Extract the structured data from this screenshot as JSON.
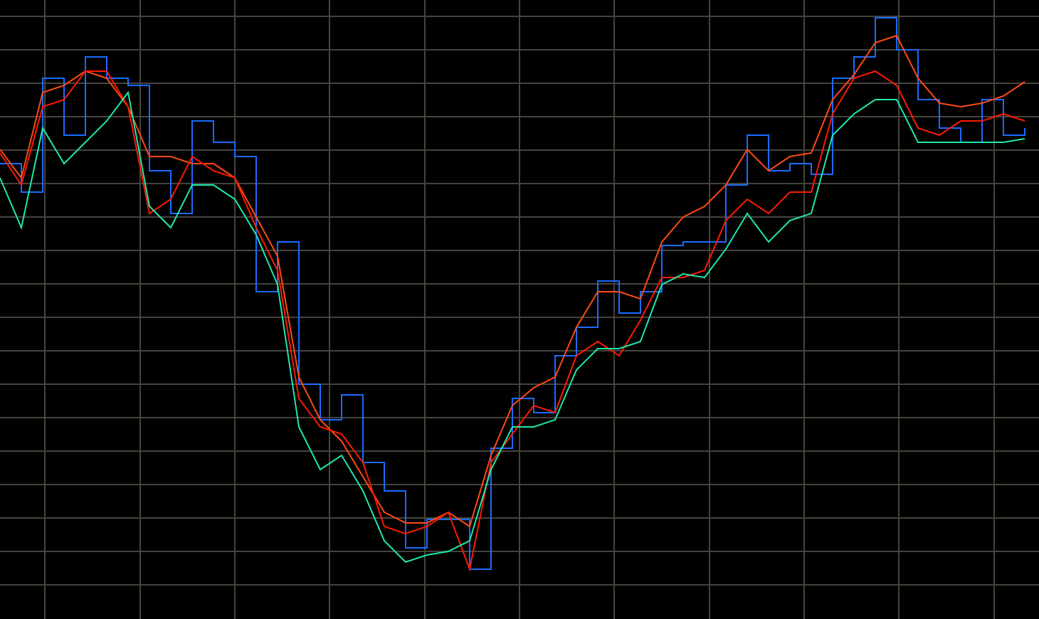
{
  "chart_data": {
    "type": "line",
    "xlim": [
      0,
      1460
    ],
    "ylim": [
      0,
      870
    ],
    "xticks": [
      63,
      197,
      330,
      463,
      597,
      730,
      863,
      997,
      1130,
      1263,
      1397
    ],
    "yticks": [
      48,
      95,
      142,
      189,
      236,
      283,
      330,
      377,
      424,
      471,
      518,
      565,
      612,
      659,
      706,
      753,
      800,
      847
    ],
    "grid": true,
    "grid_color": "#45443c",
    "background": "#000000",
    "x": [
      0,
      30,
      60,
      90,
      120,
      150,
      180,
      210,
      240,
      270,
      300,
      330,
      360,
      390,
      420,
      450,
      480,
      510,
      540,
      570,
      600,
      630,
      660,
      690,
      720,
      750,
      780,
      810,
      840,
      870,
      900,
      930,
      960,
      990,
      1020,
      1050,
      1080,
      1110,
      1140,
      1170,
      1200,
      1230,
      1260,
      1290,
      1320,
      1350,
      1380,
      1410,
      1440
    ],
    "series": [
      {
        "color": "#1a6cff",
        "step": true,
        "values": [
          640,
          600,
          760,
          680,
          790,
          760,
          750,
          630,
          570,
          700,
          670,
          650,
          460,
          530,
          330,
          280,
          315,
          220,
          180,
          100,
          140,
          140,
          70,
          240,
          310,
          290,
          370,
          410,
          475,
          430,
          460,
          525,
          530,
          530,
          610,
          680,
          630,
          640,
          625,
          760,
          790,
          845,
          800,
          730,
          690,
          670,
          730,
          680,
          690
        ]
      },
      {
        "color": "#ff4a14",
        "step": false,
        "values": [
          660,
          620,
          740,
          750,
          770,
          760,
          720,
          650,
          650,
          640,
          640,
          620,
          565,
          510,
          340,
          280,
          250,
          200,
          150,
          135,
          135,
          150,
          130,
          230,
          300,
          325,
          340,
          410,
          460,
          460,
          450,
          530,
          565,
          580,
          610,
          660,
          630,
          650,
          655,
          730,
          765,
          810,
          820,
          760,
          725,
          720,
          725,
          735,
          755
        ]
      },
      {
        "color": "#ff1a00",
        "step": false,
        "values": [
          655,
          610,
          720,
          730,
          770,
          770,
          720,
          570,
          590,
          650,
          630,
          620,
          550,
          490,
          310,
          270,
          260,
          220,
          130,
          120,
          130,
          150,
          70,
          220,
          260,
          300,
          290,
          370,
          390,
          370,
          420,
          480,
          480,
          490,
          560,
          590,
          570,
          600,
          600,
          710,
          760,
          770,
          750,
          690,
          680,
          700,
          700,
          710,
          700
        ]
      },
      {
        "color": "#1fe8a8",
        "step": false,
        "values": [
          620,
          550,
          690,
          640,
          670,
          700,
          740,
          580,
          550,
          610,
          610,
          590,
          540,
          470,
          270,
          210,
          230,
          180,
          110,
          80,
          90,
          95,
          110,
          210,
          270,
          270,
          280,
          350,
          380,
          380,
          390,
          470,
          485,
          480,
          520,
          570,
          530,
          560,
          570,
          680,
          710,
          730,
          730,
          670,
          670,
          670,
          670,
          670,
          675
        ]
      }
    ]
  }
}
